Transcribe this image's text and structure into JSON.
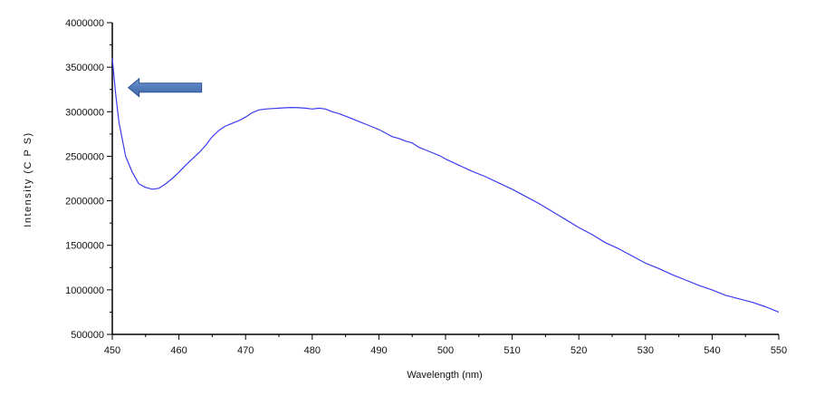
{
  "chart_data": {
    "type": "line",
    "title": "",
    "xlabel": "Wavelength (nm)",
    "ylabel": "Intensity (C P S)",
    "xlim": [
      450,
      550
    ],
    "ylim": [
      500000,
      4000000
    ],
    "x_ticks": [
      450,
      460,
      470,
      480,
      490,
      500,
      510,
      520,
      530,
      540,
      550
    ],
    "x_tick_labels": [
      "450",
      "460",
      "470",
      "480",
      "490",
      "500",
      "510",
      "520",
      "530",
      "540",
      "550"
    ],
    "y_ticks": [
      500000,
      1000000,
      1500000,
      2000000,
      2500000,
      3000000,
      3500000,
      4000000
    ],
    "y_tick_labels": [
      "500000",
      "1000000",
      "1500000",
      "2000000",
      "2500000",
      "3000000",
      "3500000",
      "4000000"
    ],
    "grid": false,
    "line_color": "#3b3bef",
    "annotation": {
      "type": "arrow",
      "color": "#4a76b8",
      "points_to": [
        450.5,
        3250000
      ]
    },
    "series": [
      {
        "x": [
          450,
          450.5,
          451,
          452,
          453,
          454,
          455,
          456,
          457,
          458,
          459,
          460,
          461,
          462,
          463,
          464,
          465,
          466,
          467,
          468,
          469,
          470,
          471,
          472,
          473,
          474,
          475,
          476,
          477,
          478,
          479,
          480,
          481,
          482,
          483,
          484,
          485,
          486,
          487,
          488,
          489,
          490,
          491,
          492,
          493,
          494,
          495,
          496,
          497,
          498,
          499,
          500,
          502,
          504,
          506,
          508,
          510,
          512,
          514,
          516,
          518,
          520,
          522,
          524,
          526,
          528,
          530,
          532,
          534,
          536,
          538,
          540,
          542,
          544,
          546,
          548,
          550
        ],
        "values": [
          3600000,
          3200000,
          2880000,
          2500000,
          2320000,
          2190000,
          2150000,
          2130000,
          2140000,
          2190000,
          2250000,
          2320000,
          2400000,
          2470000,
          2540000,
          2620000,
          2720000,
          2790000,
          2840000,
          2870000,
          2900000,
          2940000,
          2990000,
          3020000,
          3030000,
          3035000,
          3040000,
          3045000,
          3048000,
          3045000,
          3040000,
          3030000,
          3040000,
          3030000,
          3000000,
          2980000,
          2950000,
          2920000,
          2890000,
          2860000,
          2830000,
          2800000,
          2760000,
          2720000,
          2700000,
          2670000,
          2650000,
          2600000,
          2570000,
          2540000,
          2510000,
          2470000,
          2400000,
          2330000,
          2270000,
          2200000,
          2130000,
          2050000,
          1970000,
          1880000,
          1790000,
          1700000,
          1620000,
          1530000,
          1460000,
          1380000,
          1300000,
          1240000,
          1170000,
          1110000,
          1050000,
          1000000,
          940000,
          900000,
          860000,
          810000,
          750000
        ]
      }
    ]
  }
}
